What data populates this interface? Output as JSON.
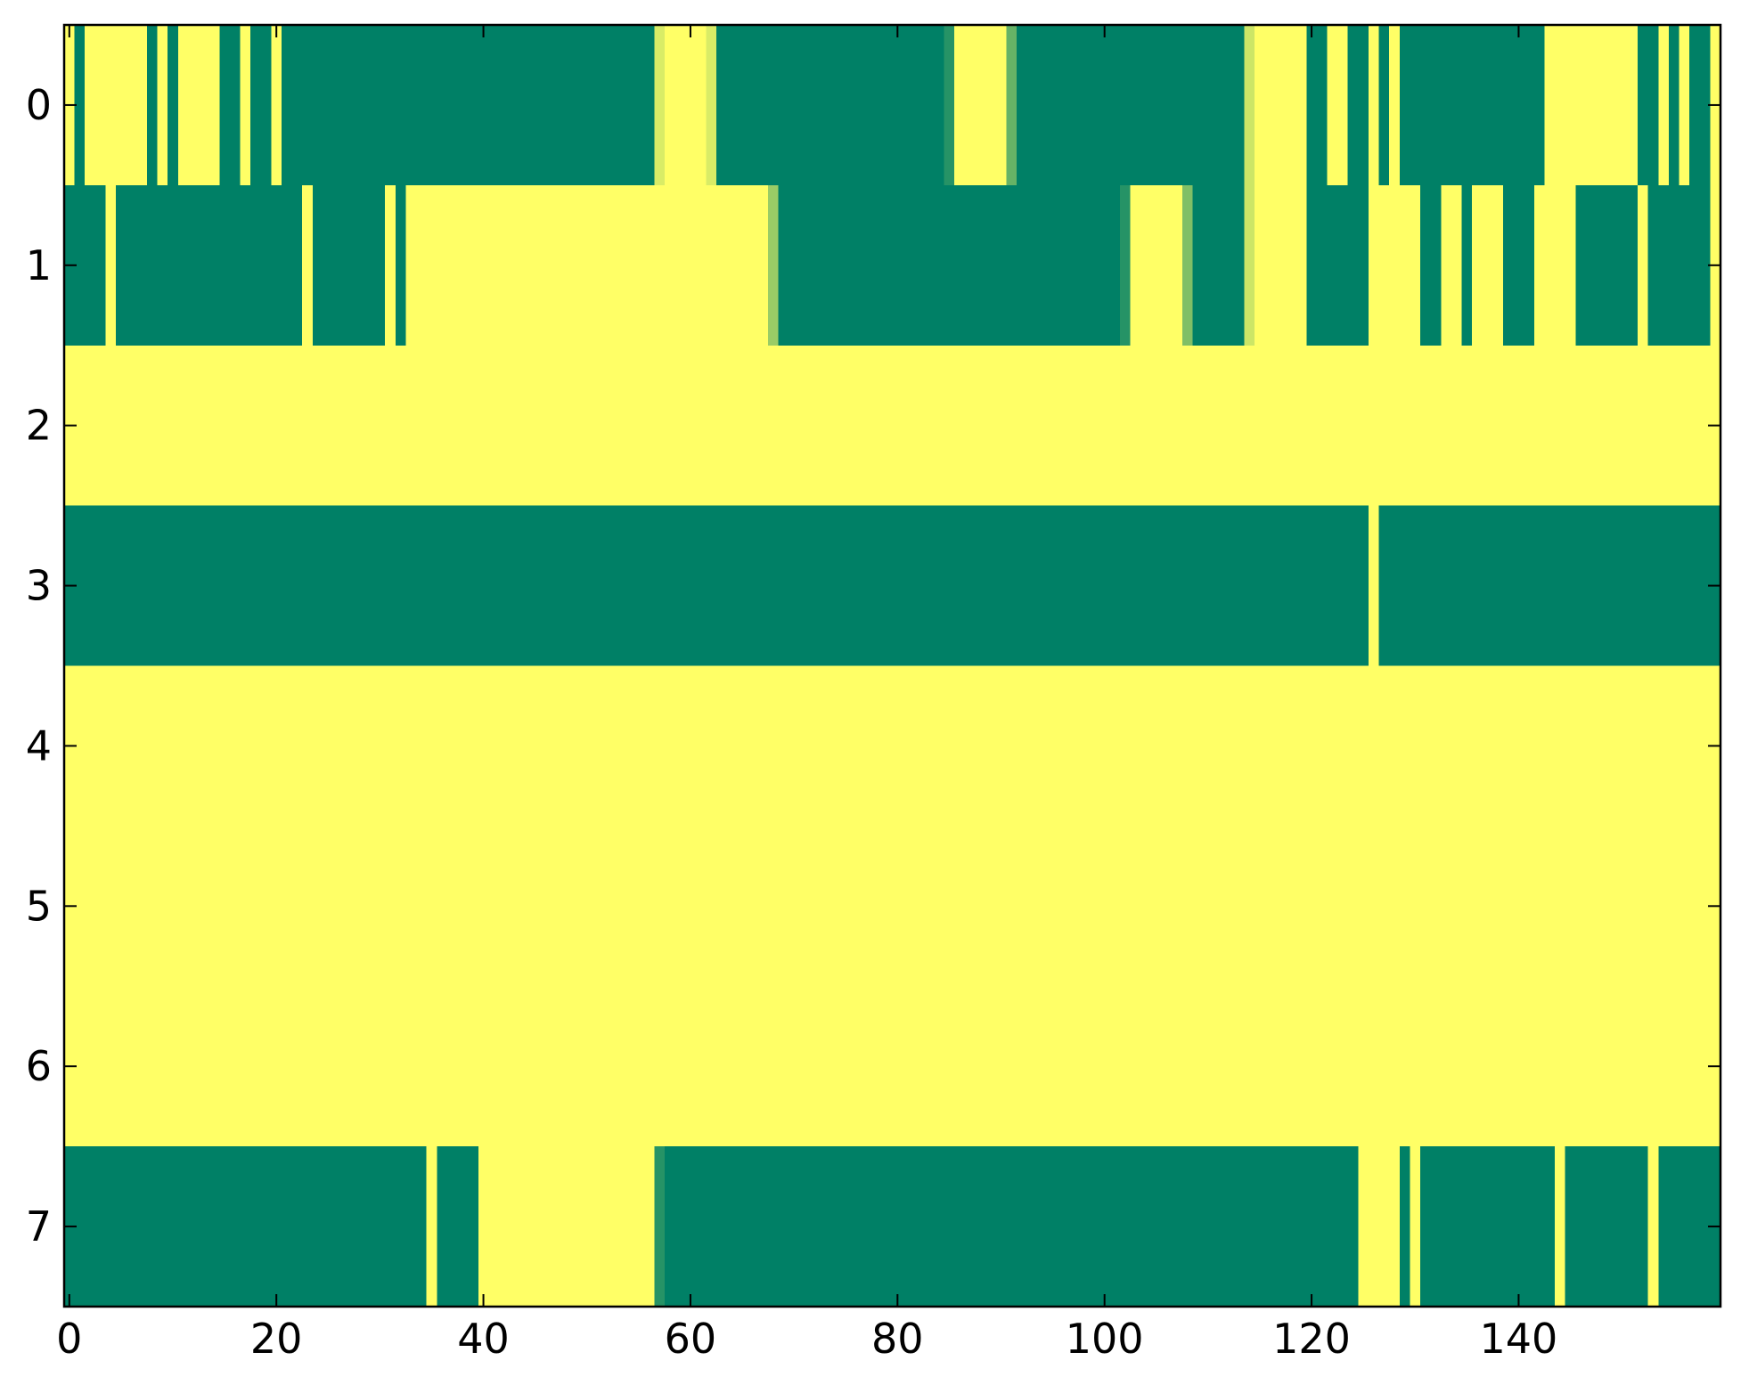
{
  "chart_data": {
    "type": "heatmap",
    "colormap": "summer",
    "xlim": [
      -0.5,
      159.5
    ],
    "ylim": [
      7.5,
      -0.5
    ],
    "xticks": [
      0,
      20,
      40,
      60,
      80,
      100,
      120,
      140
    ],
    "yticks": [
      0,
      1,
      2,
      3,
      4,
      5,
      6,
      7
    ],
    "values": [
      [
        1,
        0,
        1,
        1,
        1,
        1,
        1,
        1,
        0,
        1,
        0,
        1,
        1,
        1,
        1,
        0,
        0,
        1,
        0,
        0,
        1,
        0,
        0,
        0,
        0,
        0,
        0,
        0,
        0,
        0,
        0,
        0,
        0,
        0,
        0,
        0,
        0,
        0,
        0,
        0,
        0,
        0,
        0,
        0,
        0,
        0,
        0,
        0,
        0,
        0,
        0,
        0,
        0,
        0,
        0,
        0,
        0,
        0.85,
        1,
        1,
        1,
        1,
        0.85,
        0,
        0,
        0,
        0,
        0,
        0,
        0,
        0,
        0,
        0,
        0,
        0,
        0,
        0,
        0,
        0,
        0,
        0,
        0,
        0,
        0,
        0,
        0.15,
        1,
        1,
        1,
        1,
        1,
        0.4,
        0,
        0,
        0,
        0,
        0,
        0,
        0,
        0,
        0,
        0,
        0,
        0,
        0,
        0,
        0,
        0,
        0,
        0,
        0,
        0,
        0,
        0,
        0.8,
        1,
        1,
        1,
        1,
        1,
        0,
        0,
        1,
        1,
        0,
        0,
        1,
        0,
        1,
        0,
        0,
        0,
        0,
        0,
        0,
        0,
        0,
        0,
        0,
        0,
        0,
        0,
        0,
        1,
        1,
        1,
        1,
        1,
        1,
        1,
        1,
        1,
        0,
        0,
        1,
        0,
        1,
        0,
        0,
        1
      ],
      [
        0,
        0,
        0,
        0,
        1,
        0,
        0,
        0,
        0,
        0,
        0,
        0,
        0,
        0,
        0,
        0,
        0,
        0,
        0,
        0,
        0,
        0,
        0,
        1,
        0,
        0,
        0,
        0,
        0,
        0,
        0,
        1,
        0,
        1,
        1,
        1,
        1,
        1,
        1,
        1,
        1,
        1,
        1,
        1,
        1,
        1,
        1,
        1,
        1,
        1,
        1,
        1,
        1,
        1,
        1,
        1,
        1,
        1,
        1,
        1,
        1,
        1,
        1,
        1,
        1,
        1,
        1,
        1,
        0.6,
        0,
        0,
        0,
        0,
        0,
        0,
        0,
        0,
        0,
        0,
        0,
        0,
        0,
        0,
        0,
        0,
        0,
        0,
        0,
        0,
        0,
        0,
        0,
        0,
        0,
        0,
        0,
        0,
        0,
        0,
        0,
        0,
        0,
        0.15,
        1,
        1,
        1,
        1,
        1,
        0.5,
        0,
        0,
        0,
        0,
        0,
        0.8,
        1,
        1,
        1,
        1,
        1,
        0,
        0,
        0,
        0,
        0,
        0,
        1,
        1,
        1,
        1,
        1,
        0,
        0,
        1,
        1,
        0,
        1,
        1,
        1,
        0,
        0,
        0,
        1,
        1,
        1,
        1,
        0,
        0,
        0,
        0,
        0,
        0,
        1,
        0,
        0,
        0,
        0,
        0,
        0,
        1
      ],
      [
        1,
        1,
        1,
        1,
        1,
        1,
        1,
        1,
        1,
        1,
        1,
        1,
        1,
        1,
        1,
        1,
        1,
        1,
        1,
        1,
        1,
        1,
        1,
        1,
        1,
        1,
        1,
        1,
        1,
        1,
        1,
        1,
        1,
        1,
        1,
        1,
        1,
        1,
        1,
        1,
        1,
        1,
        1,
        1,
        1,
        1,
        1,
        1,
        1,
        1,
        1,
        1,
        1,
        1,
        1,
        1,
        1,
        1,
        1,
        1,
        1,
        1,
        1,
        1,
        1,
        1,
        1,
        1,
        1,
        1,
        1,
        1,
        1,
        1,
        1,
        1,
        1,
        1,
        1,
        1,
        1,
        1,
        1,
        1,
        1,
        1,
        1,
        1,
        1,
        1,
        1,
        1,
        1,
        1,
        1,
        1,
        1,
        1,
        1,
        1,
        1,
        1,
        1,
        1,
        1,
        1,
        1,
        1,
        1,
        1,
        1,
        1,
        1,
        1,
        1,
        1,
        1,
        1,
        1,
        1,
        1,
        1,
        1,
        1,
        1,
        1,
        1,
        1,
        1,
        1,
        1,
        1,
        1,
        1,
        1,
        1,
        1,
        1,
        1,
        1,
        1,
        1,
        1,
        1,
        1,
        1,
        1,
        1,
        1,
        1,
        1,
        1,
        1,
        1,
        1,
        1,
        1,
        1,
        1,
        1
      ],
      [
        0,
        0,
        0,
        0,
        0,
        0,
        0,
        0,
        0,
        0,
        0,
        0,
        0,
        0,
        0,
        0,
        0,
        0,
        0,
        0,
        0,
        0,
        0,
        0,
        0,
        0,
        0,
        0,
        0,
        0,
        0,
        0,
        0,
        0,
        0,
        0,
        0,
        0,
        0,
        0,
        0,
        0,
        0,
        0,
        0,
        0,
        0,
        0,
        0,
        0,
        0,
        0,
        0,
        0,
        0,
        0,
        0,
        0,
        0,
        0,
        0,
        0,
        0,
        0,
        0,
        0,
        0,
        0,
        0,
        0,
        0,
        0,
        0,
        0,
        0,
        0,
        0,
        0,
        0,
        0,
        0,
        0,
        0,
        0,
        0,
        0,
        0,
        0,
        0,
        0,
        0,
        0,
        0,
        0,
        0,
        0,
        0,
        0,
        0,
        0,
        0,
        0,
        0,
        0,
        0,
        0,
        0,
        0,
        0,
        0,
        0,
        0,
        0,
        0,
        0,
        0,
        0,
        0,
        0,
        0,
        0,
        0,
        0,
        0,
        0,
        0,
        1,
        0,
        0,
        0,
        0,
        0,
        0,
        0,
        0,
        0,
        0,
        0,
        0,
        0,
        0,
        0,
        0,
        0,
        0,
        0,
        0,
        0,
        0,
        0,
        0,
        0,
        0,
        0,
        0,
        0,
        0,
        0,
        0,
        0
      ],
      [
        1,
        1,
        1,
        1,
        1,
        1,
        1,
        1,
        1,
        1,
        1,
        1,
        1,
        1,
        1,
        1,
        1,
        1,
        1,
        1,
        1,
        1,
        1,
        1,
        1,
        1,
        1,
        1,
        1,
        1,
        1,
        1,
        1,
        1,
        1,
        1,
        1,
        1,
        1,
        1,
        1,
        1,
        1,
        1,
        1,
        1,
        1,
        1,
        1,
        1,
        1,
        1,
        1,
        1,
        1,
        1,
        1,
        1,
        1,
        1,
        1,
        1,
        1,
        1,
        1,
        1,
        1,
        1,
        1,
        1,
        1,
        1,
        1,
        1,
        1,
        1,
        1,
        1,
        1,
        1,
        1,
        1,
        1,
        1,
        1,
        1,
        1,
        1,
        1,
        1,
        1,
        1,
        1,
        1,
        1,
        1,
        1,
        1,
        1,
        1,
        1,
        1,
        1,
        1,
        1,
        1,
        1,
        1,
        1,
        1,
        1,
        1,
        1,
        1,
        1,
        1,
        1,
        1,
        1,
        1,
        1,
        1,
        1,
        1,
        1,
        1,
        1,
        1,
        1,
        1,
        1,
        1,
        1,
        1,
        1,
        1,
        1,
        1,
        1,
        1,
        1,
        1,
        1,
        1,
        1,
        1,
        1,
        1,
        1,
        1,
        1,
        1,
        1,
        1,
        1,
        1,
        1,
        1,
        1,
        1
      ],
      [
        1,
        1,
        1,
        1,
        1,
        1,
        1,
        1,
        1,
        1,
        1,
        1,
        1,
        1,
        1,
        1,
        1,
        1,
        1,
        1,
        1,
        1,
        1,
        1,
        1,
        1,
        1,
        1,
        1,
        1,
        1,
        1,
        1,
        1,
        1,
        1,
        1,
        1,
        1,
        1,
        1,
        1,
        1,
        1,
        1,
        1,
        1,
        1,
        1,
        1,
        1,
        1,
        1,
        1,
        1,
        1,
        1,
        1,
        1,
        1,
        1,
        1,
        1,
        1,
        1,
        1,
        1,
        1,
        1,
        1,
        1,
        1,
        1,
        1,
        1,
        1,
        1,
        1,
        1,
        1,
        1,
        1,
        1,
        1,
        1,
        1,
        1,
        1,
        1,
        1,
        1,
        1,
        1,
        1,
        1,
        1,
        1,
        1,
        1,
        1,
        1,
        1,
        1,
        1,
        1,
        1,
        1,
        1,
        1,
        1,
        1,
        1,
        1,
        1,
        1,
        1,
        1,
        1,
        1,
        1,
        1,
        1,
        1,
        1,
        1,
        1,
        1,
        1,
        1,
        1,
        1,
        1,
        1,
        1,
        1,
        1,
        1,
        1,
        1,
        1,
        1,
        1,
        1,
        1,
        1,
        1,
        1,
        1,
        1,
        1,
        1,
        1,
        1,
        1,
        1,
        1,
        1,
        1,
        1,
        1
      ],
      [
        1,
        1,
        1,
        1,
        1,
        1,
        1,
        1,
        1,
        1,
        1,
        1,
        1,
        1,
        1,
        1,
        1,
        1,
        1,
        1,
        1,
        1,
        1,
        1,
        1,
        1,
        1,
        1,
        1,
        1,
        1,
        1,
        1,
        1,
        1,
        1,
        1,
        1,
        1,
        1,
        1,
        1,
        1,
        1,
        1,
        1,
        1,
        1,
        1,
        1,
        1,
        1,
        1,
        1,
        1,
        1,
        1,
        1,
        1,
        1,
        1,
        1,
        1,
        1,
        1,
        1,
        1,
        1,
        1,
        1,
        1,
        1,
        1,
        1,
        1,
        1,
        1,
        1,
        1,
        1,
        1,
        1,
        1,
        1,
        1,
        1,
        1,
        1,
        1,
        1,
        1,
        1,
        1,
        1,
        1,
        1,
        1,
        1,
        1,
        1,
        1,
        1,
        1,
        1,
        1,
        1,
        1,
        1,
        1,
        1,
        1,
        1,
        1,
        1,
        1,
        1,
        1,
        1,
        1,
        1,
        1,
        1,
        1,
        1,
        1,
        1,
        1,
        1,
        1,
        1,
        1,
        1,
        1,
        1,
        1,
        1,
        1,
        1,
        1,
        1,
        1,
        1,
        1,
        1,
        1,
        1,
        1,
        1,
        1,
        1,
        1,
        1,
        1,
        1,
        1,
        1,
        1,
        1,
        1,
        1
      ],
      [
        0,
        0,
        0,
        0,
        0,
        0,
        0,
        0,
        0,
        0,
        0,
        0,
        0,
        0,
        0,
        0,
        0,
        0,
        0,
        0,
        0,
        0,
        0,
        0,
        0,
        0,
        0,
        0,
        0,
        0,
        0,
        0,
        0,
        0,
        0,
        1,
        0,
        0,
        0,
        0,
        1,
        1,
        1,
        1,
        1,
        1,
        1,
        1,
        1,
        1,
        1,
        1,
        1,
        1,
        1,
        1,
        1,
        0.15,
        0,
        0,
        0,
        0,
        0,
        0,
        0,
        0,
        0,
        0,
        0,
        0,
        0,
        0,
        0,
        0,
        0,
        0,
        0,
        0,
        0,
        0,
        0,
        0,
        0,
        0,
        0,
        0,
        0,
        0,
        0,
        0,
        0,
        0,
        0,
        0,
        0,
        0,
        0,
        0,
        0,
        0,
        0,
        0,
        0,
        0,
        0,
        0,
        0,
        0,
        0,
        0,
        0,
        0,
        0,
        0,
        0,
        0,
        0,
        0,
        0,
        0,
        0,
        0,
        0,
        0,
        0,
        1,
        1,
        1,
        1,
        0,
        1,
        0,
        0,
        0,
        0,
        0,
        0,
        0,
        0,
        0,
        0,
        0,
        0,
        0,
        1,
        0,
        0,
        0,
        0,
        0,
        0,
        0,
        0,
        1,
        0,
        0,
        0,
        0,
        0,
        0
      ]
    ]
  }
}
